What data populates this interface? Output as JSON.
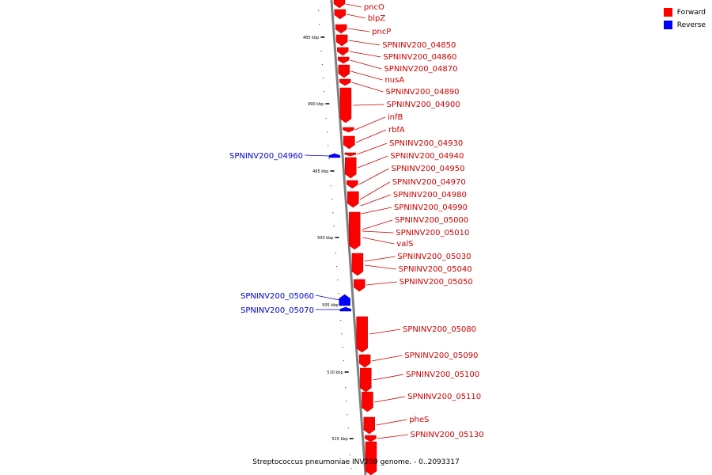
{
  "caption": "Streptococcus pneumoniae INV200 genome. - 0..2093317",
  "legend": [
    {
      "label": "Forward",
      "color": "#ff0000"
    },
    {
      "label": "Reverse",
      "color": "#0000ff"
    }
  ],
  "colors": {
    "forward": "#ff0000",
    "reverse": "#0000ff",
    "backbone": "#808080"
  },
  "scale_ticks": [
    "485 kbp",
    "490 kbp",
    "495 kbp",
    "500 kbp",
    "505 kbp",
    "510 kbp",
    "515 kbp"
  ],
  "forward_genes": [
    "pncO",
    "blpZ",
    "pncP",
    "SPNINV200_04850",
    "SPNINV200_04860",
    "SPNINV200_04870",
    "nusA",
    "SPNINV200_04890",
    "SPNINV200_04900",
    "infB",
    "rbfA",
    "SPNINV200_04930",
    "SPNINV200_04940",
    "SPNINV200_04950",
    "SPNINV200_04970",
    "SPNINV200_04980",
    "SPNINV200_04990",
    "SPNINV200_05000",
    "SPNINV200_05010",
    "valS",
    "SPNINV200_05030",
    "SPNINV200_05040",
    "SPNINV200_05050",
    "SPNINV200_05080",
    "SPNINV200_05090",
    "SPNINV200_05100",
    "SPNINV200_05110",
    "pheS",
    "SPNINV200_05130"
  ],
  "reverse_genes": [
    "SPNINV200_04960",
    "SPNINV200_05060",
    "SPNINV200_05070"
  ]
}
